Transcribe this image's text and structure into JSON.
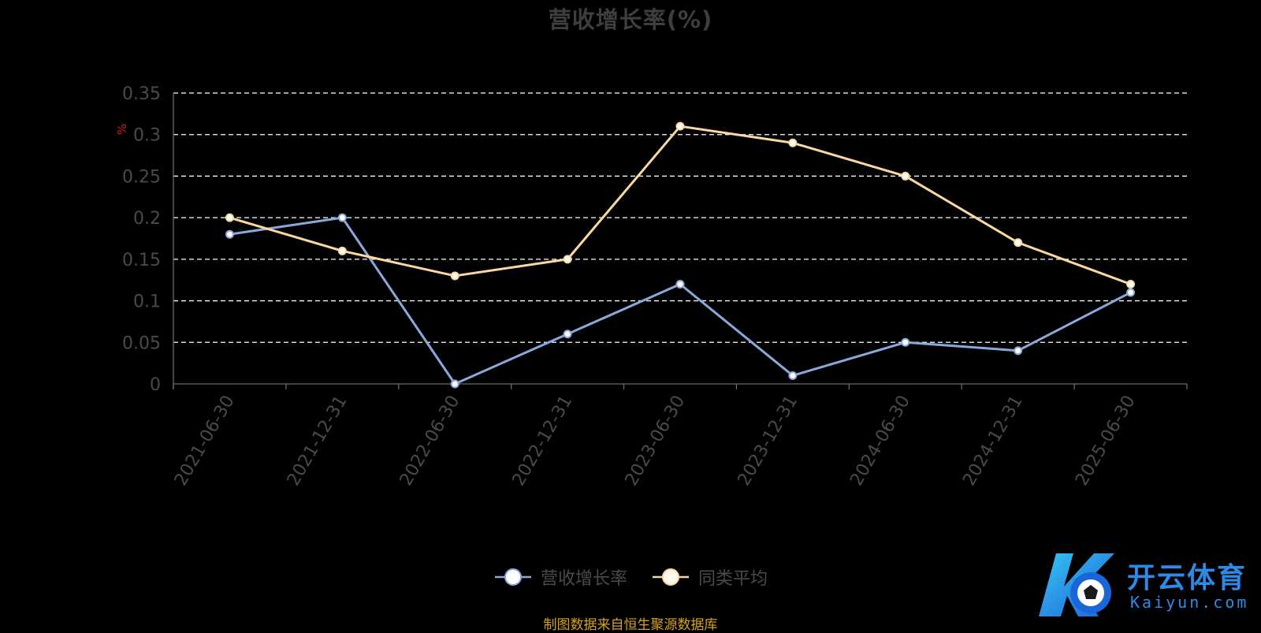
{
  "chart_data": {
    "type": "line",
    "title": "营收增长率(%)",
    "ylabel": "%",
    "xlabel": "",
    "categories": [
      "2021-06-30",
      "2021-12-31",
      "2022-06-30",
      "2022-12-31",
      "2023-06-30",
      "2023-12-31",
      "2024-06-30",
      "2024-12-31",
      "2025-06-30"
    ],
    "ylim": [
      0,
      0.35
    ],
    "yticks": [
      "0",
      "0.05",
      "0.1",
      "0.15",
      "0.2",
      "0.25",
      "0.3",
      "0.35"
    ],
    "grid": true,
    "legend_position": "bottom",
    "series": [
      {
        "name": "营收增长率",
        "color": "#8aa8dc",
        "values": [
          0.18,
          0.2,
          0.0,
          0.06,
          0.12,
          0.01,
          0.05,
          0.04,
          0.11
        ]
      },
      {
        "name": "同类平均",
        "color": "#f9d9a0",
        "values": [
          0.2,
          0.16,
          0.13,
          0.15,
          0.31,
          0.29,
          0.25,
          0.17,
          0.12
        ]
      }
    ]
  },
  "source_note": "制图数据来自恒生聚源数据库",
  "watermark": {
    "name_cn": "开云体育",
    "name_en": "Kaiyun.com",
    "color": "#2b8be6"
  }
}
